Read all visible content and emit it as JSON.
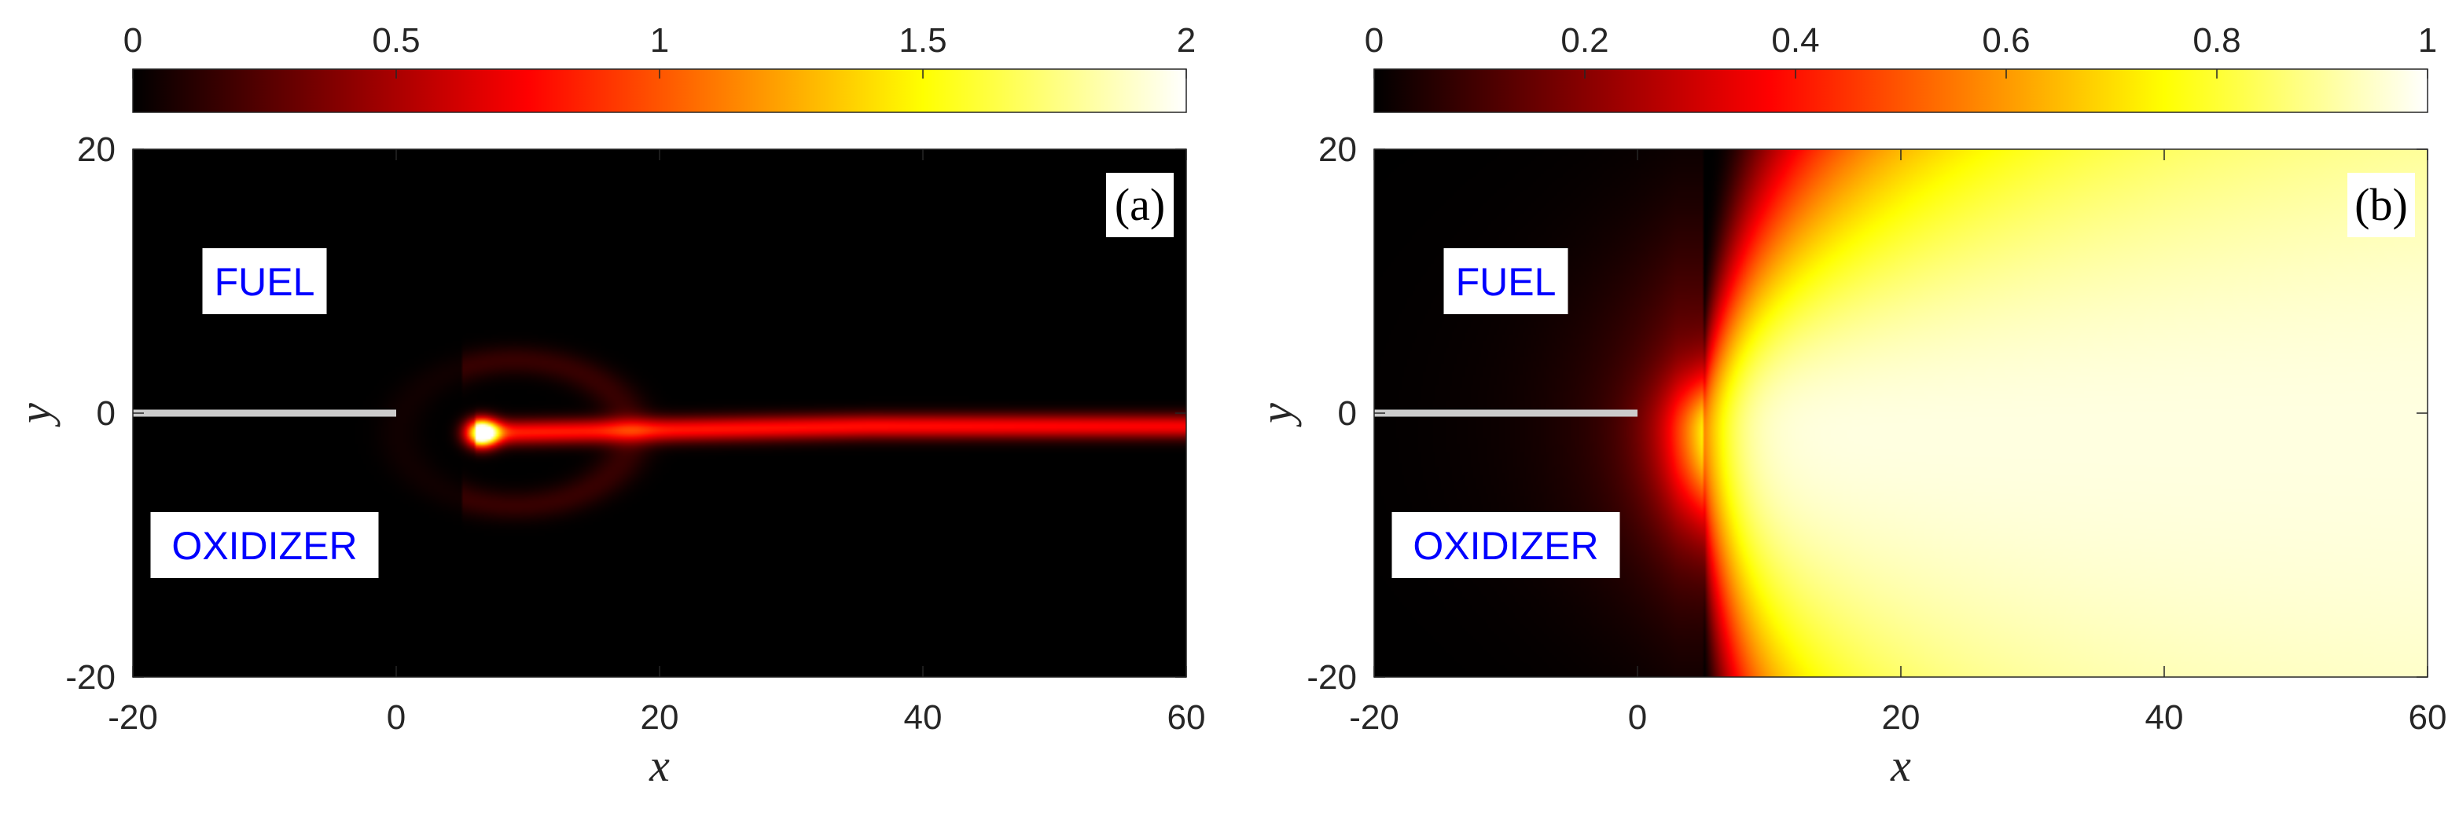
{
  "chart_data": [
    {
      "type": "heatmap",
      "panel_label": "(a)",
      "xlabel": "x",
      "ylabel": "y",
      "xlim": [
        -20,
        60
      ],
      "ylim": [
        -20,
        20
      ],
      "x_ticks": [
        "-20",
        "0",
        "20",
        "40",
        "60"
      ],
      "y_ticks": [
        "-20",
        "0",
        "20"
      ],
      "colorbar": {
        "range": [
          0,
          2
        ],
        "ticks": [
          "0",
          "0.5",
          "1",
          "1.5",
          "2"
        ],
        "colormap": "hot",
        "placement": "top"
      },
      "field_features": {
        "description": "thin reaction sheet",
        "flame_tip": [
          6,
          -1.5
        ],
        "tip_peak_value": 2.0,
        "sheet_value": 0.75,
        "sheet_half_width": 0.7,
        "sheet_y_end": -1.0
      },
      "splitter_plate": {
        "x_start": -20,
        "x_end": 0,
        "y": 0,
        "color": "#cccccc"
      },
      "annotations": [
        {
          "text": "FUEL",
          "x": -10,
          "y": 10
        },
        {
          "text": "OXIDIZER",
          "x": -10,
          "y": -10
        }
      ]
    },
    {
      "type": "heatmap",
      "panel_label": "(b)",
      "xlabel": "x",
      "ylabel": "y",
      "xlim": [
        -20,
        60
      ],
      "ylim": [
        -20,
        20
      ],
      "x_ticks": [
        "-20",
        "0",
        "20",
        "40",
        "60"
      ],
      "y_ticks": [
        "-20",
        "0",
        "20"
      ],
      "colorbar": {
        "range": [
          0,
          1
        ],
        "ticks": [
          "0",
          "0.2",
          "0.4",
          "0.6",
          "0.8",
          "1"
        ],
        "colormap": "hot",
        "placement": "top"
      },
      "field_features": {
        "description": "broad hot plume",
        "flame_tip": [
          5,
          -1.5
        ],
        "peak_value": 0.97,
        "plume_spread": "widening downstream, asymmetric toward oxidizer side"
      },
      "splitter_plate": {
        "x_start": -20,
        "x_end": 0,
        "y": 0,
        "color": "#cccccc"
      },
      "annotations": [
        {
          "text": "FUEL",
          "x": -10,
          "y": 10
        },
        {
          "text": "OXIDIZER",
          "x": -10,
          "y": -10
        }
      ]
    }
  ]
}
